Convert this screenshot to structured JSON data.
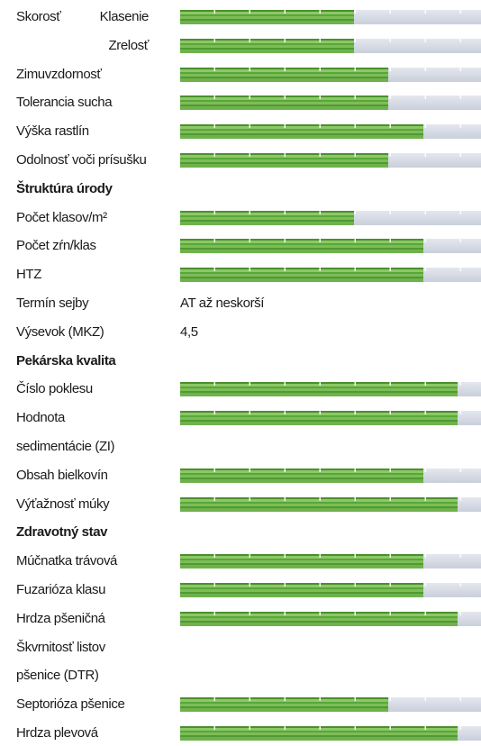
{
  "speed": {
    "title": "Skorosť",
    "rows": [
      {
        "label": "Klasenie",
        "value": 5
      },
      {
        "label": "Zrelosť",
        "value": 5
      }
    ]
  },
  "sections": [
    {
      "rows": [
        {
          "label": [
            "Zimuvzdornosť"
          ],
          "value": 6
        },
        {
          "label": [
            "Tolerancia sucha"
          ],
          "value": 6
        },
        {
          "label": [
            "Výška rastlín"
          ],
          "value": 7
        },
        {
          "label": [
            "Odolnosť voči prísušku"
          ],
          "value": 6
        }
      ]
    },
    {
      "heading": "Štruktúra úrody",
      "rows": [
        {
          "label": [
            "Počet klasov/m²"
          ],
          "value": 5
        },
        {
          "label": [
            "Počet zŕn/klas"
          ],
          "value": 7
        },
        {
          "label": [
            "HTZ"
          ],
          "value": 7
        },
        {
          "label": [
            "Termín sejby"
          ],
          "text": "AT až neskorší"
        },
        {
          "label": [
            "Výsevok (MKZ)"
          ],
          "text": "4,5"
        }
      ]
    },
    {
      "heading": "Pekárska kvalita",
      "rows": [
        {
          "label": [
            "Číslo poklesu"
          ],
          "value": 8
        },
        {
          "label": [
            "Hodnota",
            "sedimentácie (ZI)"
          ],
          "value": 8
        },
        {
          "label": [
            "Obsah bielkovín"
          ],
          "value": 7
        },
        {
          "label": [
            "Výťažnosť múky"
          ],
          "value": 8
        }
      ]
    },
    {
      "heading": "Zdravotný stav",
      "rows": [
        {
          "label": [
            "Múčnatka trávová"
          ],
          "value": 7
        },
        {
          "label": [
            "Fuzarióza klasu"
          ],
          "value": 7
        },
        {
          "label": [
            "Hrdza pšeničná"
          ],
          "value": 8
        },
        {
          "label": [
            "Škvrnitosť listov",
            "pšenice (DTR)"
          ]
        },
        {
          "label": [
            "Septorióza pšenice"
          ],
          "value": 6
        },
        {
          "label": [
            "Hrdza plevová"
          ],
          "value": 8
        }
      ]
    }
  ]
}
